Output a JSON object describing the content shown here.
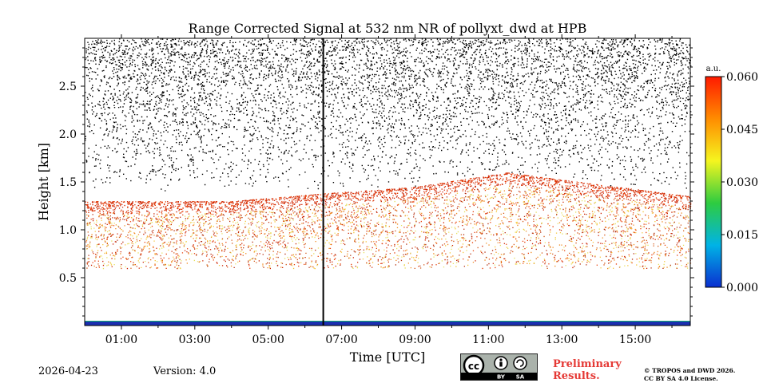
{
  "chart_data": {
    "type": "heatmap",
    "title": "Range Corrected Signal at 532 nm NR of pollyxt_dwd at HPB",
    "xlabel": "Time [UTC]",
    "ylabel": "Height [km]",
    "x_range_hours": [
      0.0,
      16.5
    ],
    "ylim_km": [
      0.0,
      3.0
    ],
    "xticks": [
      {
        "value": 1,
        "label": "01:00"
      },
      {
        "value": 3,
        "label": "03:00"
      },
      {
        "value": 5,
        "label": "05:00"
      },
      {
        "value": 7,
        "label": "07:00"
      },
      {
        "value": 9,
        "label": "09:00"
      },
      {
        "value": 11,
        "label": "11:00"
      },
      {
        "value": 13,
        "label": "13:00"
      },
      {
        "value": 15,
        "label": "15:00"
      }
    ],
    "yticks": [
      {
        "value": 0.5,
        "label": "0.5"
      },
      {
        "value": 1.0,
        "label": "1.0"
      },
      {
        "value": 1.5,
        "label": "1.5"
      },
      {
        "value": 2.0,
        "label": "2.0"
      },
      {
        "value": 2.5,
        "label": "2.5"
      }
    ],
    "colorbar": {
      "unit": "a.u.",
      "range": [
        0.0,
        0.06
      ],
      "ticks": [
        {
          "value": 0.0,
          "label": "0.000"
        },
        {
          "value": 0.015,
          "label": "0.015"
        },
        {
          "value": 0.03,
          "label": "0.030"
        },
        {
          "value": 0.045,
          "label": "0.045"
        },
        {
          "value": 0.06,
          "label": "0.060"
        }
      ],
      "colors": [
        "#0a2fd0",
        "#00b3e6",
        "#2ecc40",
        "#f5f51f",
        "#ff8c00",
        "#ff1a00"
      ]
    },
    "features": {
      "boundary_layer_top_km": [
        {
          "time": 0.0,
          "height": 1.3
        },
        {
          "time": 4.0,
          "height": 1.3
        },
        {
          "time": 6.5,
          "height": 1.38
        },
        {
          "time": 9.0,
          "height": 1.45
        },
        {
          "time": 11.5,
          "height": 1.6
        },
        {
          "time": 13.5,
          "height": 1.5
        },
        {
          "time": 16.5,
          "height": 1.35
        }
      ],
      "noise_start_km": 1.4,
      "overlap_layer_km": 0.05,
      "data_gap_time": 6.5
    }
  },
  "footer": {
    "date": "2026-04-23",
    "version": "Version: 4.0",
    "preliminary_line1": "Preliminary",
    "preliminary_line2": "Results.",
    "copyright_line1": "© TROPOS and DWD 2026.",
    "copyright_line2": "CC BY SA 4.0 License.",
    "license_badge": [
      "cc",
      "BY",
      "SA"
    ]
  }
}
